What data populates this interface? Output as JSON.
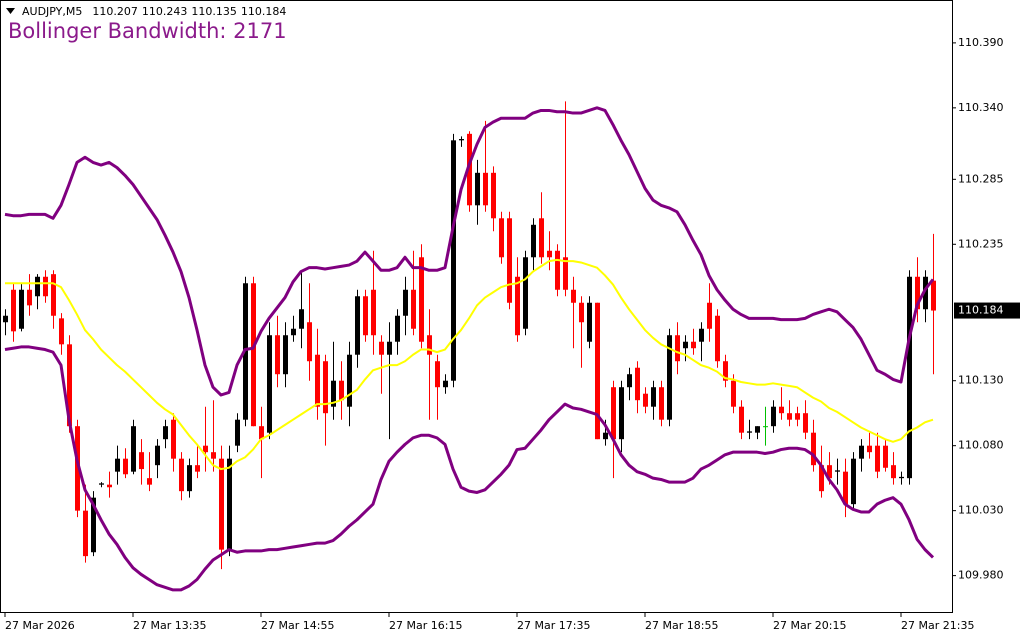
{
  "chart_data": {
    "type": "candlestick",
    "symbol": "AUDJPY,M5",
    "indicator_label": "Bollinger Bandwidth: 2171",
    "categories": [
      "27 Mar 2026",
      null,
      null,
      null,
      null,
      null,
      null,
      null,
      null,
      null,
      null,
      null,
      null,
      null,
      null,
      null,
      "27 Mar 13:35",
      null,
      null,
      null,
      null,
      null,
      null,
      null,
      null,
      null,
      null,
      null,
      null,
      null,
      null,
      null,
      "27 Mar 14:55",
      null,
      null,
      null,
      null,
      null,
      null,
      null,
      null,
      null,
      null,
      null,
      null,
      null,
      null,
      null,
      "27 Mar 16:15",
      null,
      null,
      null,
      null,
      null,
      null,
      null,
      null,
      null,
      null,
      null,
      null,
      null,
      null,
      null,
      "27 Mar 17:35",
      null,
      null,
      null,
      null,
      null,
      null,
      null,
      null,
      null,
      null,
      null,
      null,
      null,
      null,
      null,
      "27 Mar 18:55",
      null,
      null,
      null,
      null,
      null,
      null,
      null,
      null,
      null,
      null,
      null,
      null,
      null,
      null,
      null,
      "27 Mar 20:15",
      null,
      null,
      null,
      null,
      null,
      null,
      null,
      null,
      null,
      null,
      null,
      null,
      null,
      null,
      null,
      "27 Mar 21:35",
      null,
      null,
      null,
      null
    ],
    "open": [
      110.175,
      110.2,
      110.17,
      110.2,
      110.195,
      110.21,
      110.212,
      110.178,
      110.158,
      110.095,
      110.03,
      109.998,
      110.05,
      110.05,
      110.06,
      110.07,
      110.06,
      110.075,
      110.055,
      110.065,
      110.085,
      110.1,
      110.07,
      110.045,
      110.065,
      110.08,
      110.075,
      110.07,
      110.0,
      110.08,
      110.1,
      110.205,
      110.095,
      110.09,
      110.165,
      110.135,
      110.165,
      110.17,
      110.175,
      110.15,
      110.145,
      110.11,
      110.13,
      110.11,
      110.15,
      110.195,
      110.2,
      110.16,
      110.15,
      110.16,
      110.18,
      110.2,
      110.225,
      110.165,
      110.145,
      110.125,
      110.13,
      110.315,
      110.32,
      110.265,
      110.29,
      110.29,
      110.255,
      110.255,
      110.21,
      110.17,
      110.225,
      110.255,
      110.23,
      110.23,
      110.225,
      110.2,
      110.19,
      110.16,
      110.19,
      110.085,
      110.125,
      110.085,
      110.125,
      110.14,
      110.12,
      110.11,
      110.125,
      110.1,
      110.165,
      110.155,
      110.16,
      110.16,
      110.19,
      110.18,
      110.145,
      110.13,
      110.11,
      110.09,
      110.09,
      110.095,
      110.095,
      110.11,
      110.105,
      110.105,
      110.105,
      110.09,
      110.065,
      110.065,
      110.06,
      110.06,
      110.035,
      110.07,
      110.08,
      110.08,
      110.08,
      110.065,
      110.055,
      110.055,
      110.21,
      110.185,
      110.207
    ],
    "high": [
      110.185,
      110.205,
      110.205,
      110.212,
      110.212,
      110.215,
      110.215,
      110.182,
      110.165,
      110.1,
      110.05,
      110.045,
      110.052,
      110.06,
      110.08,
      110.078,
      110.1,
      110.085,
      110.075,
      110.085,
      110.1,
      110.105,
      110.075,
      110.07,
      110.08,
      110.11,
      110.115,
      110.08,
      110.08,
      110.105,
      110.21,
      110.21,
      110.11,
      110.175,
      110.18,
      110.175,
      110.18,
      110.215,
      110.205,
      110.17,
      110.15,
      110.16,
      110.145,
      110.16,
      110.2,
      110.2,
      110.23,
      110.165,
      110.175,
      110.185,
      110.21,
      110.23,
      110.235,
      110.185,
      110.15,
      110.135,
      110.32,
      110.318,
      110.322,
      110.3,
      110.33,
      110.295,
      110.26,
      110.26,
      110.225,
      110.23,
      110.255,
      110.275,
      110.245,
      110.235,
      110.345,
      110.21,
      110.195,
      110.195,
      110.19,
      110.1,
      110.13,
      110.13,
      110.14,
      110.145,
      110.125,
      110.13,
      110.13,
      110.17,
      110.175,
      110.165,
      110.17,
      110.175,
      110.205,
      110.185,
      110.15,
      110.135,
      110.115,
      110.1,
      110.095,
      110.11,
      110.115,
      110.125,
      110.115,
      110.11,
      110.115,
      110.1,
      110.08,
      110.075,
      110.07,
      110.07,
      110.075,
      110.085,
      110.09,
      110.09,
      110.085,
      110.075,
      110.06,
      110.215,
      110.225,
      110.215,
      110.243
    ],
    "low": [
      110.165,
      110.16,
      110.168,
      110.18,
      110.185,
      110.19,
      110.17,
      110.15,
      110.09,
      110.025,
      109.99,
      109.995,
      110.048,
      110.04,
      110.05,
      110.055,
      110.058,
      110.05,
      110.045,
      110.055,
      110.078,
      110.06,
      110.038,
      110.04,
      110.055,
      110.06,
      110.06,
      109.985,
      109.995,
      110.075,
      110.095,
      110.095,
      110.055,
      110.085,
      110.125,
      110.125,
      110.16,
      110.155,
      110.13,
      110.1,
      110.08,
      110.1,
      110.1,
      110.095,
      110.14,
      110.16,
      110.15,
      110.12,
      110.085,
      110.15,
      110.165,
      110.165,
      110.155,
      110.1,
      110.1,
      110.12,
      110.125,
      110.31,
      110.26,
      110.25,
      110.26,
      110.245,
      110.22,
      110.185,
      110.16,
      110.165,
      110.215,
      110.22,
      110.215,
      110.195,
      110.195,
      110.155,
      110.14,
      110.155,
      110.085,
      110.08,
      110.055,
      110.075,
      110.115,
      110.105,
      110.105,
      110.1,
      110.095,
      110.095,
      110.135,
      110.145,
      110.15,
      110.145,
      110.16,
      110.14,
      110.125,
      110.105,
      110.085,
      110.085,
      110.085,
      110.08,
      110.09,
      110.1,
      110.095,
      110.095,
      110.085,
      110.06,
      110.04,
      110.05,
      110.05,
      110.025,
      110.03,
      110.06,
      110.07,
      110.055,
      110.06,
      110.05,
      110.05,
      110.05,
      110.175,
      110.175,
      110.135
    ],
    "close": [
      110.18,
      110.168,
      110.2,
      110.188,
      110.21,
      110.195,
      110.18,
      110.158,
      110.095,
      110.03,
      109.995,
      110.04,
      110.051,
      110.048,
      110.07,
      110.058,
      110.095,
      110.062,
      110.05,
      110.08,
      110.095,
      110.07,
      110.045,
      110.065,
      110.06,
      110.075,
      110.07,
      110.0,
      110.07,
      110.1,
      110.205,
      110.095,
      110.085,
      110.165,
      110.135,
      110.165,
      110.17,
      110.185,
      110.145,
      110.11,
      110.105,
      110.13,
      110.115,
      110.15,
      110.195,
      110.165,
      110.165,
      110.15,
      110.16,
      110.18,
      110.2,
      110.17,
      110.16,
      110.15,
      110.125,
      110.13,
      110.315,
      110.316,
      110.265,
      110.29,
      110.265,
      110.255,
      110.225,
      110.19,
      110.165,
      110.225,
      110.25,
      110.225,
      110.225,
      110.2,
      110.2,
      110.19,
      110.175,
      110.19,
      110.085,
      110.09,
      110.085,
      110.125,
      110.135,
      110.115,
      110.11,
      110.125,
      110.1,
      110.165,
      110.145,
      110.16,
      110.155,
      110.17,
      110.17,
      110.145,
      110.13,
      110.11,
      110.09,
      110.091,
      110.095,
      110.095,
      110.11,
      110.105,
      110.1,
      110.1,
      110.09,
      110.065,
      110.045,
      110.055,
      110.061,
      110.035,
      110.07,
      110.08,
      110.075,
      110.06,
      110.063,
      110.055,
      110.056,
      110.21,
      110.185,
      110.21,
      110.184
    ],
    "bull_color": "#000000",
    "bear_color": "#ff0000",
    "doji_color": "#00c000",
    "lines": [
      {
        "color": "#800080",
        "values": [
          110.258,
          110.257,
          110.257,
          110.258,
          110.258,
          110.258,
          110.255,
          110.265,
          110.281,
          110.298,
          110.302,
          110.298,
          110.296,
          110.298,
          110.294,
          110.288,
          110.281,
          110.272,
          110.263,
          110.254,
          110.242,
          110.229,
          110.214,
          110.194,
          110.169,
          110.142,
          110.125,
          110.119,
          110.121,
          110.142,
          110.154,
          110.155,
          110.168,
          110.178,
          110.186,
          110.194,
          110.206,
          110.214,
          110.217,
          110.217,
          110.216,
          110.217,
          110.218,
          110.219,
          110.222,
          110.229,
          110.222,
          110.215,
          110.215,
          110.217,
          110.225,
          110.217,
          110.217,
          110.215,
          110.215,
          110.217,
          110.248,
          110.277,
          110.296,
          110.312,
          110.325,
          110.329,
          110.332,
          110.332,
          110.332,
          110.332,
          110.336,
          110.338,
          110.338,
          110.337,
          110.337,
          110.336,
          110.336,
          110.338,
          110.34,
          110.338,
          110.327,
          110.315,
          110.304,
          110.291,
          110.278,
          110.269,
          110.265,
          110.263,
          110.26,
          110.25,
          110.238,
          110.227,
          110.211,
          110.2,
          110.192,
          110.185,
          110.181,
          110.178,
          110.178,
          110.178,
          110.178,
          110.177,
          110.177,
          110.177,
          110.178,
          110.181,
          110.183,
          110.185,
          110.183,
          110.177,
          110.171,
          110.162,
          110.15,
          110.138,
          110.135,
          110.131,
          110.129,
          110.162,
          110.188,
          110.2,
          110.208
        ]
      },
      {
        "color": "#ffff00",
        "values": [
          110.205,
          110.205,
          110.205,
          110.205,
          110.205,
          110.205,
          110.205,
          110.202,
          110.192,
          110.181,
          110.169,
          110.162,
          110.154,
          110.148,
          110.142,
          110.137,
          110.131,
          110.125,
          110.119,
          110.113,
          110.108,
          110.104,
          110.096,
          110.088,
          110.081,
          110.073,
          110.065,
          110.062,
          110.063,
          110.068,
          110.071,
          110.077,
          110.085,
          110.088,
          110.092,
          110.096,
          110.1,
          110.104,
          110.108,
          110.112,
          110.112,
          110.113,
          110.115,
          110.119,
          110.123,
          110.131,
          110.138,
          110.14,
          110.142,
          110.142,
          110.145,
          110.15,
          110.154,
          110.154,
          110.152,
          110.154,
          110.162,
          110.169,
          110.178,
          110.188,
          110.194,
          110.198,
          110.202,
          110.204,
          110.205,
          110.208,
          110.214,
          110.218,
          110.222,
          110.223,
          110.222,
          110.222,
          110.221,
          110.219,
          110.217,
          110.211,
          110.204,
          110.194,
          110.185,
          110.177,
          110.169,
          110.163,
          110.158,
          110.155,
          110.152,
          110.15,
          110.146,
          110.142,
          110.14,
          110.137,
          110.132,
          110.131,
          110.129,
          110.128,
          110.127,
          110.127,
          110.128,
          110.127,
          110.126,
          110.125,
          110.121,
          110.117,
          110.114,
          110.109,
          110.106,
          110.102,
          110.098,
          110.094,
          110.091,
          110.088,
          110.085,
          110.083,
          110.085,
          110.091,
          110.094,
          110.098,
          110.1
        ]
      },
      {
        "color": "#800080",
        "values": [
          110.154,
          110.155,
          110.156,
          110.156,
          110.155,
          110.154,
          110.152,
          110.142,
          110.1,
          110.069,
          110.046,
          110.035,
          110.023,
          110.012,
          110.004,
          109.994,
          109.986,
          109.981,
          109.977,
          109.973,
          109.971,
          109.969,
          109.969,
          109.972,
          109.977,
          109.985,
          109.992,
          109.996,
          110.0,
          109.998,
          109.999,
          109.999,
          109.999,
          110.0,
          110.0,
          110.001,
          110.002,
          110.003,
          110.004,
          110.005,
          110.005,
          110.007,
          110.012,
          110.018,
          110.023,
          110.029,
          110.035,
          110.054,
          110.068,
          110.075,
          110.081,
          110.086,
          110.088,
          110.088,
          110.086,
          110.081,
          110.062,
          110.048,
          110.045,
          110.044,
          110.046,
          110.052,
          110.058,
          110.065,
          110.077,
          110.078,
          110.085,
          110.092,
          110.1,
          110.106,
          110.112,
          110.109,
          110.108,
          110.106,
          110.104,
          110.096,
          110.085,
          110.073,
          110.065,
          110.06,
          110.058,
          110.055,
          110.054,
          110.052,
          110.052,
          110.052,
          110.055,
          110.062,
          110.065,
          110.069,
          110.073,
          110.075,
          110.075,
          110.075,
          110.075,
          110.074,
          110.075,
          110.077,
          110.078,
          110.078,
          110.077,
          110.073,
          110.065,
          110.054,
          110.046,
          110.035,
          110.031,
          110.029,
          110.029,
          110.035,
          110.038,
          110.04,
          110.035,
          110.023,
          110.008,
          110.0,
          109.994
        ]
      }
    ],
    "ylim": [
      109.952,
      110.423
    ],
    "yticks": [
      {
        "value": 110.39,
        "label": "110.390"
      },
      {
        "value": 110.34,
        "label": "110.340"
      },
      {
        "value": 110.285,
        "label": "110.285"
      },
      {
        "value": 110.235,
        "label": "110.235"
      },
      {
        "value": 110.13,
        "label": "110.130"
      },
      {
        "value": 110.08,
        "label": "110.080"
      },
      {
        "value": 110.03,
        "label": "110.030"
      },
      {
        "value": 109.98,
        "label": "109.980"
      }
    ]
  }
}
